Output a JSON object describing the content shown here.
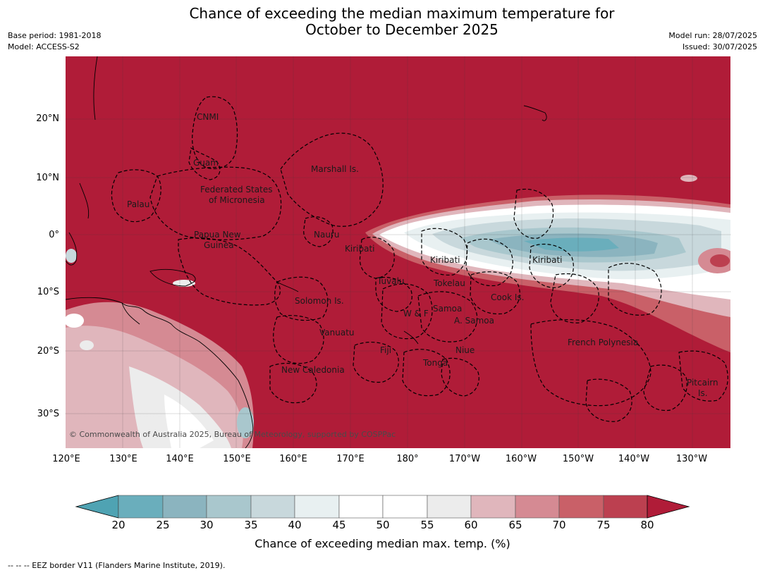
{
  "title_line1": "Chance of exceeding the median maximum temperature for",
  "title_line2": "October to December 2025",
  "meta": {
    "base_period": "Base period: 1981-2018",
    "model": "Model: ACCESS-S2",
    "model_run": "Model run: 28/07/2025",
    "issued": "Issued: 30/07/2025"
  },
  "map": {
    "lat_labels": [
      "20°N",
      "10°N",
      "0°",
      "10°S",
      "20°S",
      "30°S"
    ],
    "lon_labels": [
      "120°E",
      "130°E",
      "140°E",
      "150°E",
      "160°E",
      "170°E",
      "180°",
      "170°W",
      "160°W",
      "150°W",
      "140°W",
      "130°W"
    ],
    "regions": {
      "cnmi": "CNMI",
      "guam": "Guam",
      "marshall": "Marshall Is.",
      "fsm_line1": "Federated States",
      "fsm_line2": "of Micronesia",
      "palau": "Palau",
      "png_line1": "Papua New",
      "png_line2": "Guinea",
      "nauru": "Nauru",
      "kiribati_west": "Kiribati",
      "kiribati_central": "Kiribati",
      "kiribati_east": "Kiribati",
      "tuvalu": "Tuvalu",
      "tokelau": "Tokelau",
      "cook": "Cook Is.",
      "solomon": "Solomon Is.",
      "samoa": "Samoa",
      "wf": "W & F",
      "asamoa": "A. Samoa",
      "vanuatu": "Vanuatu",
      "fiji": "Fiji",
      "niue": "Niue",
      "tonga": "Tonga",
      "french_polynesia": "French Polynesia",
      "new_caledonia": "New Caledonia",
      "pitcairn_line1": "Pitcairn",
      "pitcairn_line2": "Is."
    },
    "copyright": "© Commonwealth of Australia 2025, Bureau of Meteorology, supported by COSPPac",
    "colors": {
      "above_80": "#b01c38",
      "75_80": "#bc4050",
      "70_75": "#c96068",
      "65_70": "#d58a93",
      "60_65": "#e0b6bc",
      "55_60": "#ececec",
      "45_55": "#ffffff",
      "40_45": "#e8f0f1",
      "35_40": "#c8d8dc",
      "30_35": "#a9c7cd",
      "25_30": "#8bb4bf",
      "20_25": "#6aaebc",
      "below_20": "#4fa3b3"
    }
  },
  "colorbar": {
    "ticks": [
      "20",
      "25",
      "30",
      "35",
      "40",
      "45",
      "50",
      "55",
      "60",
      "65",
      "70",
      "75",
      "80"
    ],
    "label": "Chance of exceeding median max. temp. (%)"
  },
  "footnote": "--  --  -- EEZ border V11 (Flanders Marine Institute, 2019)."
}
